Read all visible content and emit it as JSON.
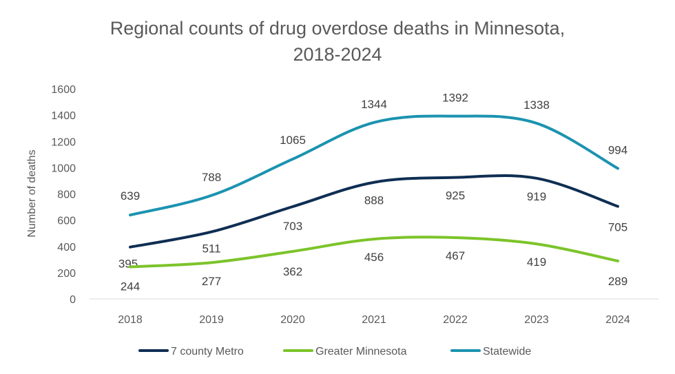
{
  "chart_data": {
    "type": "line",
    "title_line1": "Regional counts of drug overdose deaths in Minnesota,",
    "title_line2": "2018-2024",
    "xlabel": "",
    "ylabel": "Number of deaths",
    "categories": [
      "2018",
      "2019",
      "2020",
      "2021",
      "2022",
      "2023",
      "2024"
    ],
    "ylim": [
      0,
      1600
    ],
    "yticks": [
      0,
      200,
      400,
      600,
      800,
      1000,
      1200,
      1400,
      1600
    ],
    "grid": false,
    "smoothed": true,
    "legend_position": "bottom",
    "series": [
      {
        "name": "7 county Metro",
        "color": "#0f2e53",
        "values": [
          395,
          511,
          703,
          888,
          925,
          919,
          705
        ]
      },
      {
        "name": "Greater Minnesota",
        "color": "#7cc42a",
        "values": [
          244,
          277,
          362,
          456,
          467,
          419,
          289
        ]
      },
      {
        "name": "Statewide",
        "color": "#1b93b0",
        "values": [
          639,
          788,
          1065,
          1344,
          1392,
          1338,
          994
        ]
      }
    ]
  }
}
